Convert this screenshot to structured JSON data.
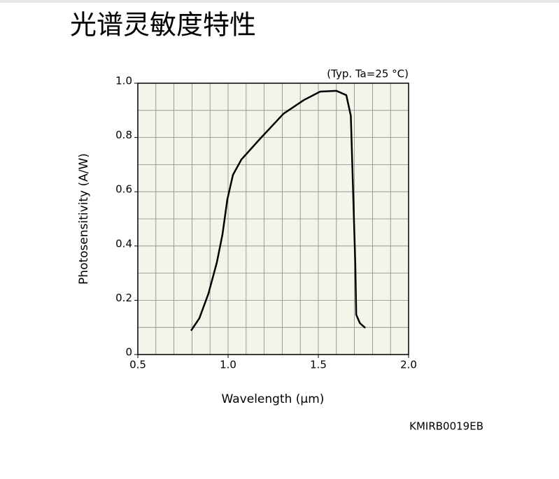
{
  "page_title": "光谱灵敏度特性",
  "chart_data": {
    "type": "line",
    "annotation": "(Typ. Ta=25 °C)",
    "code": "KMIRB0019EB",
    "xlabel": "Wavelength (μm)",
    "ylabel": "Photosensitivity (A/W)",
    "xlim": [
      0.5,
      2.0
    ],
    "ylim": [
      0,
      1.0
    ],
    "xticks": [
      0.5,
      {
        "value": 1.0,
        "label": "1.0"
      },
      1.5,
      {
        "value": 2.0,
        "label": "2.0"
      }
    ],
    "yticks": [
      0,
      0.2,
      0.4,
      0.6,
      0.8,
      {
        "value": 1.0,
        "label": "1.0"
      }
    ],
    "xgrid": [
      0.6,
      0.7,
      0.8,
      0.9,
      1.0,
      1.1,
      1.2,
      1.3,
      1.4,
      1.5,
      1.6,
      1.7,
      1.8,
      1.9
    ],
    "ygrid": [
      0.1,
      0.2,
      0.3,
      0.4,
      0.5,
      0.6,
      0.7,
      0.8,
      0.9
    ],
    "grid": true,
    "background": "#f5f4ea",
    "series": [
      {
        "color": "#000000",
        "x": [
          0.795,
          0.841,
          0.891,
          0.938,
          0.969,
          0.996,
          1.027,
          1.074,
          1.17,
          1.306,
          1.42,
          1.51,
          1.6,
          1.655,
          1.68,
          1.69,
          1.705,
          1.71,
          1.73,
          1.76
        ],
        "values": [
          0.088,
          0.134,
          0.224,
          0.34,
          0.443,
          0.572,
          0.662,
          0.719,
          0.79,
          0.887,
          0.938,
          0.969,
          0.972,
          0.956,
          0.88,
          0.66,
          0.33,
          0.147,
          0.116,
          0.098
        ]
      }
    ]
  }
}
